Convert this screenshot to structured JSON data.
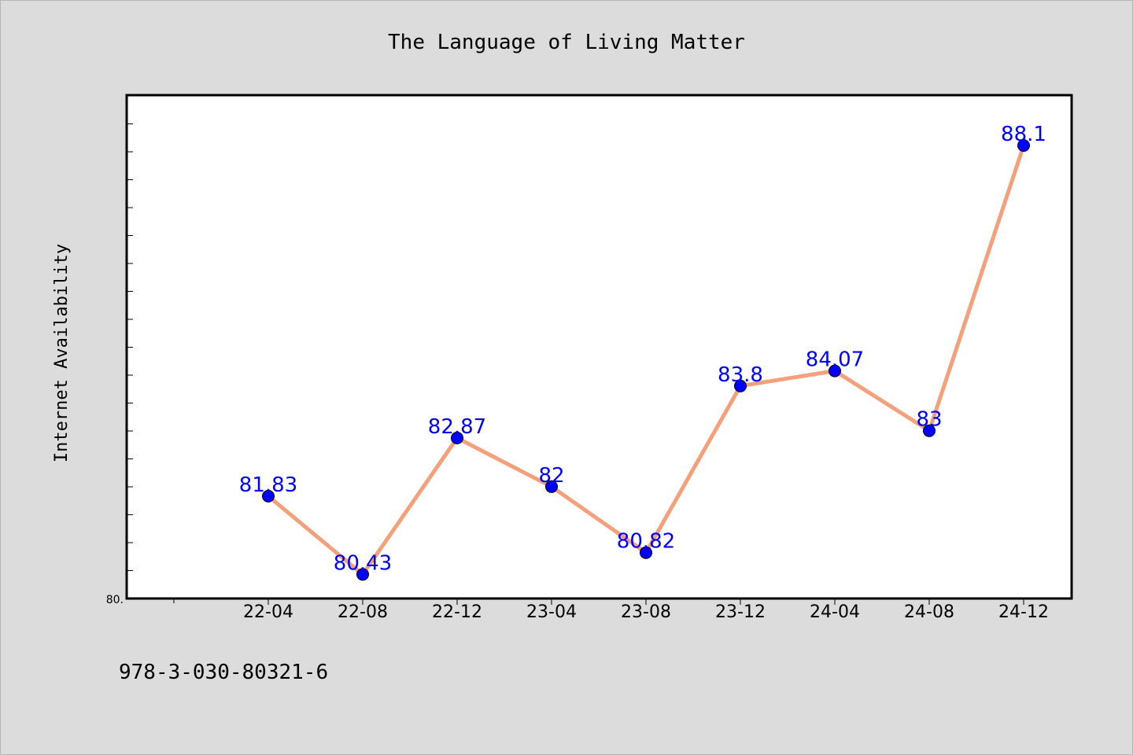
{
  "chart_data": {
    "type": "line",
    "title": "The Language of Living Matter",
    "xlabel": "",
    "ylabel": "Internet Availability",
    "x": [
      "22-04",
      "22-08",
      "22-12",
      "23-04",
      "23-08",
      "23-12",
      "24-04",
      "24-08",
      "24-12"
    ],
    "series": [
      {
        "values": [
          81.83,
          80.43,
          82.87,
          82,
          80.82,
          83.8,
          84.07,
          83,
          88.1
        ],
        "labels": [
          "81.83",
          "80.43",
          "82.87",
          "82",
          "80.82",
          "83.8",
          "84.07",
          "83",
          "88.1"
        ]
      }
    ],
    "ylim": [
      80,
      89
    ],
    "y_tick_label": "80.",
    "grid": false,
    "line_color": "#f4a07a",
    "marker_color": "#0000ff",
    "label_color": "#0000ff"
  },
  "footer": {
    "isbn": "978-3-030-80321-6"
  },
  "colors": {
    "background": "#dcdcdc",
    "plot_background": "#ffffff",
    "axis": "#000000"
  }
}
